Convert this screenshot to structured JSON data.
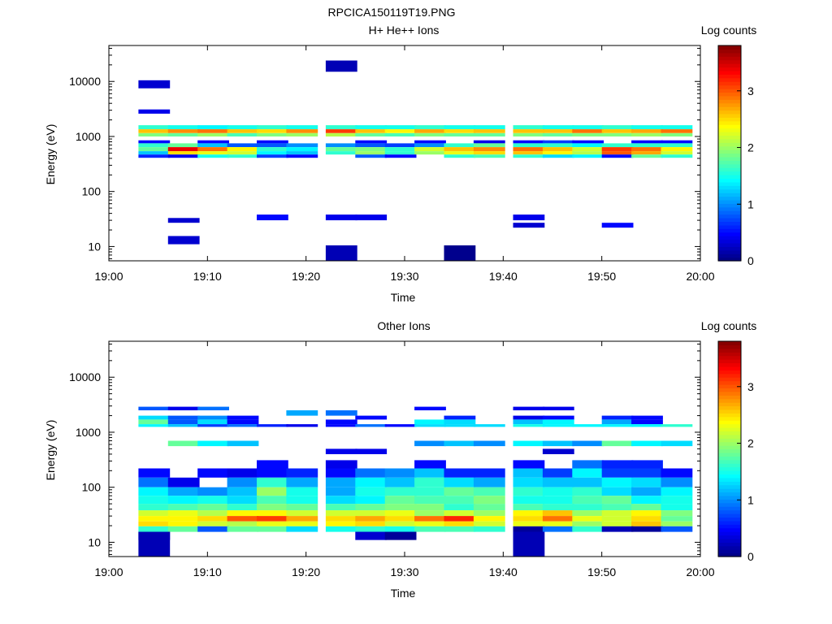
{
  "figure_title": "RPCICA150119T19.PNG",
  "chart_data": [
    {
      "type": "heatmap",
      "title": "H+ He++ Ions",
      "xlabel": "Time",
      "ylabel": "Energy (eV)",
      "colorbar_label": "Log counts",
      "x_ticks": [
        "19:00",
        "19:10",
        "19:20",
        "19:30",
        "19:40",
        "19:50",
        "20:00"
      ],
      "xlim": [
        "19:00",
        "20:00"
      ],
      "y_scale": "log",
      "y_ticks": [
        10,
        100,
        1000,
        10000
      ],
      "y_tick_labels": [
        "10",
        "100",
        "1000",
        "10000"
      ],
      "ylim": [
        5.5,
        45000
      ],
      "colorbar_ticks": [
        0,
        1,
        2,
        3
      ],
      "colorbar_range": [
        0,
        3.8
      ],
      "colormap": "jet",
      "time_bins_start": [
        "19:03",
        "19:06",
        "19:09",
        "19:12",
        "19:15",
        "19:18",
        "19:22",
        "19:25",
        "19:28",
        "19:31",
        "19:34",
        "19:37",
        "19:41",
        "19:44",
        "19:47",
        "19:50",
        "19:53",
        "19:56"
      ],
      "energy_bands": [
        {
          "e_lo": 1350,
          "e_hi": 1600,
          "values": [
            1.6,
            1.5,
            1.4,
            1.5,
            1.6,
            1.5,
            1.6,
            1.5,
            1.5,
            1.6,
            1.5,
            1.5,
            1.6,
            1.5,
            1.5,
            1.6,
            1.5,
            1.5
          ]
        },
        {
          "e_lo": 1150,
          "e_hi": 1350,
          "values": [
            2.6,
            2.8,
            2.9,
            2.6,
            2.5,
            2.8,
            3.1,
            2.6,
            2.4,
            2.7,
            2.5,
            2.6,
            2.6,
            2.6,
            2.9,
            2.6,
            2.7,
            2.9
          ]
        },
        {
          "e_lo": 1000,
          "e_hi": 1150,
          "values": [
            1.9,
            1.8,
            2.0,
            1.7,
            1.9,
            2.0,
            2.1,
            1.8,
            1.7,
            1.9,
            1.8,
            1.8,
            1.9,
            1.8,
            1.9,
            1.9,
            2.0,
            1.9
          ]
        },
        {
          "e_lo": 750,
          "e_hi": 850,
          "values": [
            0.5,
            0.0,
            0.5,
            0.0,
            0.5,
            0.0,
            0.0,
            0.5,
            0.0,
            0.5,
            0.0,
            0.4,
            0.5,
            0.7,
            0.5,
            0.0,
            0.5,
            0.5
          ]
        },
        {
          "e_lo": 640,
          "e_hi": 750,
          "values": [
            1.6,
            1.8,
            1.2,
            0.8,
            0.8,
            1.0,
            1.0,
            0.8,
            0.7,
            1.0,
            1.6,
            1.8,
            1.6,
            1.6,
            1.4,
            1.6,
            1.6,
            1.6
          ]
        },
        {
          "e_lo": 540,
          "e_hi": 640,
          "values": [
            1.8,
            3.4,
            2.9,
            2.4,
            1.6,
            1.4,
            1.8,
            1.9,
            1.6,
            2.2,
            2.6,
            2.8,
            2.9,
            2.6,
            2.2,
            3.1,
            2.9,
            2.4
          ]
        },
        {
          "e_lo": 470,
          "e_hi": 540,
          "values": [
            1.2,
            2.5,
            2.3,
            2.2,
            1.4,
            1.2,
            1.6,
            2.0,
            1.6,
            2.0,
            2.3,
            2.5,
            2.6,
            2.4,
            2.1,
            3.0,
            2.7,
            2.2
          ]
        },
        {
          "e_lo": 410,
          "e_hi": 470,
          "values": [
            0.6,
            0.4,
            1.5,
            1.6,
            0.7,
            0.5,
            0.0,
            0.8,
            0.5,
            0.0,
            1.6,
            1.7,
            1.6,
            1.3,
            1.4,
            0.5,
            1.8,
            1.6
          ]
        },
        {
          "e_lo": 27,
          "e_hi": 33,
          "values": [
            0.0,
            0.3,
            0.0,
            0.0,
            0.0,
            0.0,
            0.0,
            0.0,
            0.0,
            0.0,
            0.0,
            0.0,
            0.0,
            0.0,
            0.0,
            0.0,
            0.0,
            0.0
          ]
        },
        {
          "e_lo": 30,
          "e_hi": 38,
          "values": [
            0.0,
            0.0,
            0.0,
            0.0,
            0.5,
            0.0,
            0.4,
            0.4,
            0.0,
            0.0,
            0.0,
            0.0,
            0.4,
            0.0,
            0.0,
            0.0,
            0.0,
            0.0
          ]
        },
        {
          "e_lo": 22,
          "e_hi": 27,
          "values": [
            0.0,
            0.0,
            0.0,
            0.0,
            0.0,
            0.0,
            0.0,
            0.0,
            0.0,
            0.0,
            0.0,
            0.0,
            0.3,
            0.0,
            0.0,
            0.5,
            0.0,
            0.0
          ]
        },
        {
          "e_lo": 11,
          "e_hi": 15.5,
          "values": [
            0.0,
            0.3,
            0.0,
            0.0,
            0.0,
            0.0,
            0.0,
            0.0,
            0.0,
            0.0,
            0.0,
            0.0,
            0.0,
            0.0,
            0.0,
            0.0,
            0.0,
            0.0
          ]
        },
        {
          "e_lo": 5.5,
          "e_hi": 10.5,
          "values": [
            0.0,
            0.0,
            0.0,
            0.0,
            0.0,
            0.0,
            0.2,
            0.0,
            0.0,
            0.0,
            0.05,
            0.0,
            0.0,
            0.0,
            0.0,
            0.0,
            0.0,
            0.0
          ]
        },
        {
          "e_lo": 15000,
          "e_hi": 24000,
          "values": [
            0.0,
            0.0,
            0.0,
            0.0,
            0.0,
            0.0,
            0.2,
            0.0,
            0.0,
            0.0,
            0.0,
            0.0,
            0.0,
            0.0,
            0.0,
            0.0,
            0.0,
            0.0
          ]
        },
        {
          "e_lo": 7500,
          "e_hi": 10500,
          "values": [
            0.3,
            0.0,
            0.0,
            0.0,
            0.0,
            0.0,
            0.0,
            0.0,
            0.0,
            0.0,
            0.0,
            0.0,
            0.0,
            0.0,
            0.0,
            0.0,
            0.0,
            0.0
          ]
        },
        {
          "e_lo": 2600,
          "e_hi": 3100,
          "values": [
            0.4,
            0.0,
            0.0,
            0.0,
            0.0,
            0.0,
            0.0,
            0.0,
            0.0,
            0.0,
            0.0,
            0.0,
            0.0,
            0.0,
            0.0,
            0.0,
            0.0,
            0.0
          ]
        }
      ]
    },
    {
      "type": "heatmap",
      "title": "Other Ions",
      "xlabel": "Time",
      "ylabel": "Energy (eV)",
      "colorbar_label": "Log counts",
      "x_ticks": [
        "19:00",
        "19:10",
        "19:20",
        "19:30",
        "19:40",
        "19:50",
        "20:00"
      ],
      "xlim": [
        "19:00",
        "20:00"
      ],
      "y_scale": "log",
      "y_ticks": [
        10,
        100,
        1000,
        10000
      ],
      "y_tick_labels": [
        "10",
        "100",
        "1000",
        "10000"
      ],
      "ylim": [
        5.5,
        45000
      ],
      "colorbar_ticks": [
        0,
        1,
        2,
        3
      ],
      "colorbar_range": [
        0,
        3.8
      ],
      "colormap": "jet",
      "time_bins_start": [
        "19:03",
        "19:06",
        "19:09",
        "19:12",
        "19:15",
        "19:18",
        "19:22",
        "19:25",
        "19:28",
        "19:31",
        "19:34",
        "19:37",
        "19:41",
        "19:44",
        "19:47",
        "19:50",
        "19:53",
        "19:56"
      ],
      "energy_bands": [
        {
          "e_lo": 2500,
          "e_hi": 2900,
          "values": [
            0.8,
            0.4,
            0.9,
            0.0,
            0.0,
            0.0,
            0.0,
            0.0,
            0.0,
            0.5,
            0.0,
            0.0,
            0.4,
            0.4,
            0.0,
            0.0,
            0.0,
            0.0
          ]
        },
        {
          "e_lo": 2000,
          "e_hi": 2500,
          "values": [
            0.0,
            0.0,
            0.0,
            0.0,
            0.0,
            1.1,
            0.9,
            0.0,
            0.0,
            0.0,
            0.0,
            0.0,
            0.0,
            0.0,
            0.0,
            0.0,
            0.0,
            0.0
          ]
        },
        {
          "e_lo": 1700,
          "e_hi": 2000,
          "values": [
            1.3,
            0.8,
            1.0,
            0.5,
            0.0,
            0.0,
            0.0,
            0.5,
            0.0,
            0.0,
            0.6,
            0.0,
            0.4,
            0.5,
            0.0,
            0.6,
            0.5,
            0.0
          ]
        },
        {
          "e_lo": 1400,
          "e_hi": 1700,
          "values": [
            1.8,
            0.8,
            1.3,
            0.5,
            0.0,
            0.0,
            0.5,
            0.0,
            0.0,
            1.4,
            1.3,
            0.0,
            1.2,
            1.4,
            0.0,
            1.1,
            0.5,
            0.0
          ]
        },
        {
          "e_lo": 1250,
          "e_hi": 1400,
          "values": [
            1.4,
            1.2,
            0.7,
            0.9,
            0.6,
            0.4,
            0.5,
            0.9,
            0.5,
            1.3,
            1.3,
            1.3,
            1.5,
            1.4,
            1.4,
            1.4,
            1.4,
            1.6
          ]
        },
        {
          "e_lo": 560,
          "e_hi": 700,
          "values": [
            0.0,
            1.8,
            1.4,
            1.2,
            0.0,
            0.0,
            0.0,
            0.0,
            0.0,
            1.0,
            1.2,
            1.0,
            1.4,
            1.2,
            1.0,
            1.8,
            1.4,
            1.3
          ]
        },
        {
          "e_lo": 400,
          "e_hi": 500,
          "values": [
            0.0,
            0.0,
            0.0,
            0.0,
            0.0,
            0.0,
            0.4,
            0.4,
            0.0,
            0.0,
            0.0,
            0.0,
            0.0,
            0.3,
            0.0,
            0.0,
            0.0,
            0.0
          ]
        },
        {
          "e_lo": 220,
          "e_hi": 310,
          "values": [
            0.0,
            0.0,
            0.0,
            0.0,
            0.5,
            0.0,
            0.4,
            0.0,
            0.0,
            0.5,
            0.0,
            0.0,
            0.5,
            0.0,
            0.9,
            0.6,
            0.6,
            0.0
          ]
        },
        {
          "e_lo": 150,
          "e_hi": 220,
          "values": [
            0.5,
            0.0,
            0.5,
            0.4,
            0.5,
            0.6,
            0.5,
            0.9,
            1.0,
            1.2,
            0.6,
            0.6,
            1.2,
            0.7,
            1.4,
            0.7,
            0.7,
            0.5
          ]
        },
        {
          "e_lo": 100,
          "e_hi": 150,
          "values": [
            0.9,
            0.4,
            0.0,
            1.0,
            1.6,
            1.1,
            1.1,
            1.4,
            1.2,
            1.6,
            1.3,
            1.1,
            1.3,
            1.2,
            1.2,
            1.4,
            1.3,
            1.0
          ]
        },
        {
          "e_lo": 70,
          "e_hi": 100,
          "values": [
            1.4,
            1.1,
            1.0,
            1.2,
            2.0,
            1.5,
            1.1,
            1.5,
            1.6,
            1.6,
            1.8,
            1.7,
            1.6,
            1.5,
            1.6,
            1.3,
            1.1,
            1.4
          ]
        },
        {
          "e_lo": 50,
          "e_hi": 70,
          "values": [
            1.5,
            1.4,
            1.5,
            1.3,
            1.7,
            1.5,
            1.3,
            1.4,
            1.8,
            1.7,
            1.7,
            1.9,
            1.5,
            1.5,
            1.7,
            1.8,
            1.4,
            1.5
          ]
        },
        {
          "e_lo": 38,
          "e_hi": 50,
          "values": [
            1.6,
            1.7,
            1.8,
            1.6,
            1.9,
            1.8,
            1.7,
            1.8,
            1.9,
            1.9,
            1.6,
            1.8,
            1.7,
            1.6,
            1.6,
            1.7,
            1.8,
            1.5
          ]
        },
        {
          "e_lo": 30,
          "e_hi": 38,
          "values": [
            2.2,
            2.3,
            2.1,
            2.4,
            2.4,
            2.2,
            2.2,
            2.2,
            2.3,
            2.0,
            2.2,
            2.0,
            2.4,
            2.6,
            2.0,
            2.2,
            2.4,
            1.9
          ]
        },
        {
          "e_lo": 24,
          "e_hi": 30,
          "values": [
            2.4,
            2.4,
            2.5,
            3.0,
            3.1,
            2.7,
            2.5,
            2.7,
            2.5,
            2.9,
            3.2,
            2.4,
            2.5,
            2.9,
            2.3,
            2.2,
            2.5,
            1.8
          ]
        },
        {
          "e_lo": 19.5,
          "e_hi": 24,
          "values": [
            2.5,
            2.4,
            2.2,
            2.1,
            2.3,
            2.3,
            2.4,
            2.5,
            2.2,
            2.3,
            2.5,
            2.2,
            2.3,
            2.3,
            2.0,
            2.2,
            2.6,
            2.0
          ]
        },
        {
          "e_lo": 15.5,
          "e_hi": 19.5,
          "values": [
            1.6,
            1.8,
            0.8,
            1.8,
            1.8,
            1.3,
            1.5,
            1.6,
            1.5,
            1.7,
            1.7,
            1.6,
            0.1,
            0.9,
            1.6,
            0.2,
            0.1,
            0.8
          ]
        },
        {
          "e_lo": 11,
          "e_hi": 15.5,
          "values": [
            0.2,
            0.0,
            0.0,
            0.0,
            0.0,
            0.0,
            0.0,
            0.3,
            0.1,
            0.0,
            0.0,
            0.0,
            0.0,
            0.0,
            0.0,
            0.0,
            0.0,
            0.0
          ]
        },
        {
          "e_lo": 5.5,
          "e_hi": 15.5,
          "values": [
            0.2,
            0.0,
            0.0,
            0.0,
            0.0,
            0.0,
            0.0,
            0.0,
            0.0,
            0.0,
            0.0,
            0.0,
            0.2,
            0.0,
            0.0,
            0.0,
            0.0,
            0.0
          ]
        }
      ]
    }
  ]
}
